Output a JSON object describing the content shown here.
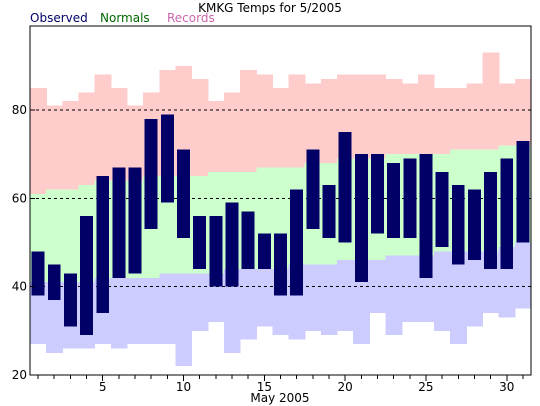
{
  "chart_data": {
    "type": "bar",
    "title": "KMKG Temps for 5/2005",
    "xlabel": "May 2005",
    "ylabel": "",
    "legend": [
      {
        "name": "Observed",
        "color": "#000066"
      },
      {
        "name": "Normals",
        "color": "#006600"
      },
      {
        "name": "Records",
        "color": "#cc66aa"
      }
    ],
    "legend_placement": "top-left",
    "colors": {
      "observed": "#000066",
      "normals_band": "#ccffcc",
      "records_high_band": "#ffcccc",
      "records_low_band": "#ccccff"
    },
    "ylim": [
      20,
      99
    ],
    "yticks": [
      20,
      40,
      60,
      80
    ],
    "xlim": [
      0.5,
      31.5
    ],
    "xticks": [
      5,
      10,
      15,
      20,
      25,
      30
    ],
    "gridlines_y": [
      40,
      60,
      80
    ],
    "days": [
      1,
      2,
      3,
      4,
      5,
      6,
      7,
      8,
      9,
      10,
      11,
      12,
      13,
      14,
      15,
      16,
      17,
      18,
      19,
      20,
      21,
      22,
      23,
      24,
      25,
      26,
      27,
      28,
      29,
      30,
      31
    ],
    "series": [
      {
        "name": "Observed",
        "high": [
          48,
          45,
          43,
          56,
          65,
          67,
          67,
          78,
          79,
          71,
          56,
          56,
          59,
          57,
          52,
          52,
          62,
          71,
          63,
          75,
          70,
          70,
          68,
          69,
          70,
          66,
          63,
          62,
          66,
          69,
          73
        ],
        "low": [
          38,
          37,
          31,
          29,
          34,
          42,
          43,
          53,
          59,
          51,
          44,
          40,
          40,
          44,
          44,
          38,
          38,
          53,
          51,
          50,
          41,
          52,
          51,
          51,
          42,
          49,
          45,
          46,
          44,
          44,
          50
        ]
      },
      {
        "name": "Normals",
        "high": [
          61,
          62,
          62,
          63,
          64,
          64,
          64,
          65,
          65,
          65,
          65,
          66,
          66,
          66,
          67,
          67,
          67,
          68,
          68,
          69,
          69,
          69,
          70,
          70,
          70,
          70,
          71,
          71,
          71,
          72,
          72
        ],
        "low": [
          41,
          41,
          41,
          41,
          42,
          42,
          42,
          42,
          43,
          43,
          43,
          43,
          44,
          44,
          44,
          44,
          45,
          45,
          45,
          46,
          46,
          46,
          47,
          47,
          47,
          48,
          48,
          48,
          48,
          49,
          50
        ]
      },
      {
        "name": "Records",
        "high": [
          85,
          81,
          82,
          84,
          88,
          85,
          81,
          84,
          89,
          90,
          87,
          82,
          84,
          89,
          88,
          85,
          88,
          86,
          87,
          88,
          88,
          88,
          87,
          86,
          88,
          85,
          85,
          86,
          93,
          86,
          87
        ],
        "low": [
          27,
          25,
          26,
          26,
          27,
          26,
          27,
          27,
          27,
          22,
          30,
          32,
          25,
          28,
          31,
          29,
          28,
          30,
          29,
          30,
          27,
          34,
          29,
          32,
          32,
          30,
          27,
          31,
          34,
          33,
          35
        ]
      }
    ]
  }
}
